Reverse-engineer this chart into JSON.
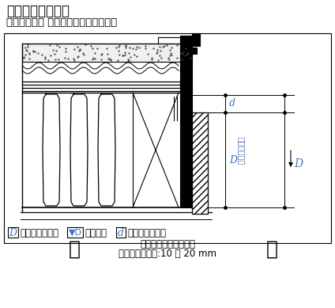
{
  "title": "窓枠幅の決定方法",
  "subtitle": "（デュオ他用 ノンケーシングタイプ）",
  "rotated_label": "壁厚残り寸法",
  "note_line1": "壁面よりの窓枠出寸法",
  "note_line2": "幅木ファミリー:10 〜 20 mm",
  "bg_color": "#ffffff",
  "line_color": "#000000",
  "blue_color": "#4472C4",
  "figsize": [
    4.24,
    3.89
  ],
  "dpi": 100
}
